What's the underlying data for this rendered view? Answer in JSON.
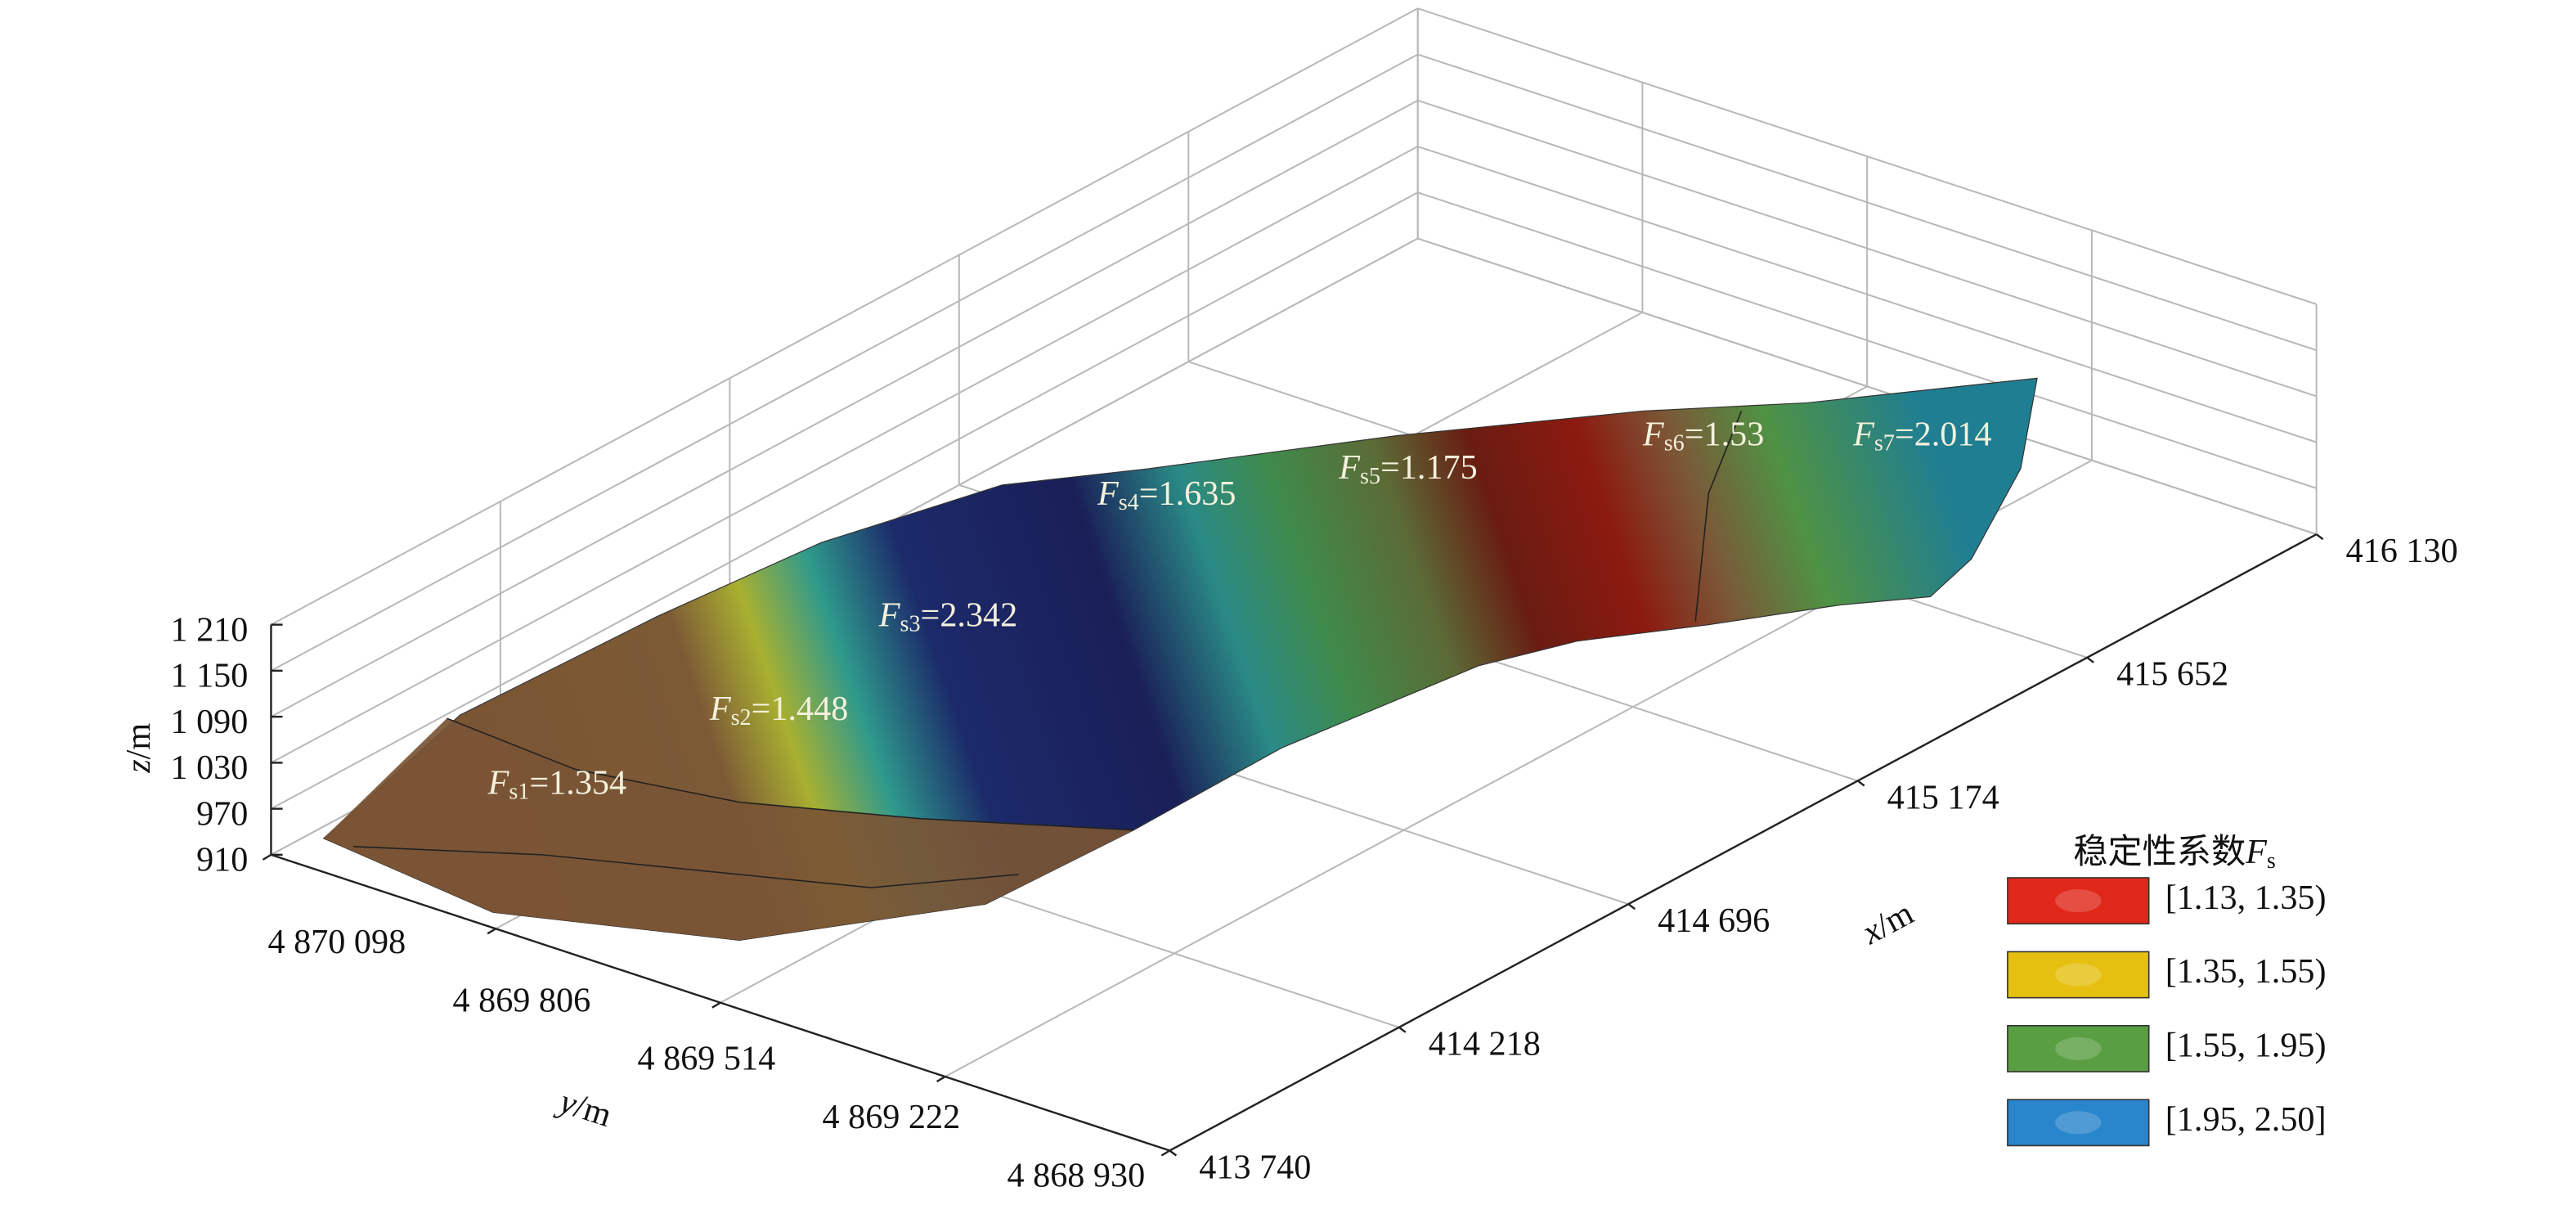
{
  "chart_data": {
    "type": "surface",
    "xlabel": {
      "symbol": "x",
      "unit": "/m"
    },
    "ylabel": {
      "symbol": "y",
      "unit": "/m"
    },
    "zlabel": {
      "symbol": "z",
      "unit": "/m"
    },
    "xlim": [
      413740,
      416130
    ],
    "ylim": [
      4868930,
      4870098
    ],
    "zlim": [
      910,
      1210
    ],
    "xticks": [
      {
        "value": 413740,
        "label": "413 740"
      },
      {
        "value": 414218,
        "label": "414 218"
      },
      {
        "value": 414696,
        "label": "414 696"
      },
      {
        "value": 415174,
        "label": "415 174"
      },
      {
        "value": 415652,
        "label": "415 652"
      },
      {
        "value": 416130,
        "label": "416 130"
      }
    ],
    "yticks": [
      {
        "value": 4870098,
        "label": "4 870 098"
      },
      {
        "value": 4869806,
        "label": "4 869 806"
      },
      {
        "value": 4869514,
        "label": "4 869 514"
      },
      {
        "value": 4869222,
        "label": "4 869 222"
      },
      {
        "value": 4868930,
        "label": "4 868 930"
      }
    ],
    "zticks": [
      910,
      970,
      {
        "value": 1030,
        "label": "1 030"
      },
      {
        "value": 1090,
        "label": "1 090"
      },
      {
        "value": 1150,
        "label": "1 150"
      },
      {
        "value": 1210,
        "label": "1 210"
      }
    ],
    "grid": true,
    "annotations": [
      {
        "symbol": "F",
        "subscript": "s1",
        "relation": "=",
        "value": 1.354
      },
      {
        "symbol": "F",
        "subscript": "s2",
        "relation": "=",
        "value": 1.448
      },
      {
        "symbol": "F",
        "subscript": "s3",
        "relation": "=",
        "value": 2.342
      },
      {
        "symbol": "F",
        "subscript": "s4",
        "relation": "=",
        "value": 1.635
      },
      {
        "symbol": "F",
        "subscript": "s5",
        "relation": "=",
        "value": 1.175
      },
      {
        "symbol": "F",
        "subscript": "s6",
        "relation": "=",
        "value": 1.53
      },
      {
        "symbol": "F",
        "subscript": "s7",
        "relation": "=",
        "value": 2.014
      }
    ],
    "legend": {
      "title": "稳定性系数",
      "title_symbol": "F",
      "title_subscript": "s",
      "entries": [
        {
          "label": "[1.13, 1.35)",
          "color": "#e0281a"
        },
        {
          "label": "[1.35, 1.55)",
          "color": "#e6c010"
        },
        {
          "label": "[1.55, 1.95)",
          "color": "#5a9e44"
        },
        {
          "label": "[1.95, 2.50]",
          "color": "#2a86cc"
        }
      ]
    }
  }
}
